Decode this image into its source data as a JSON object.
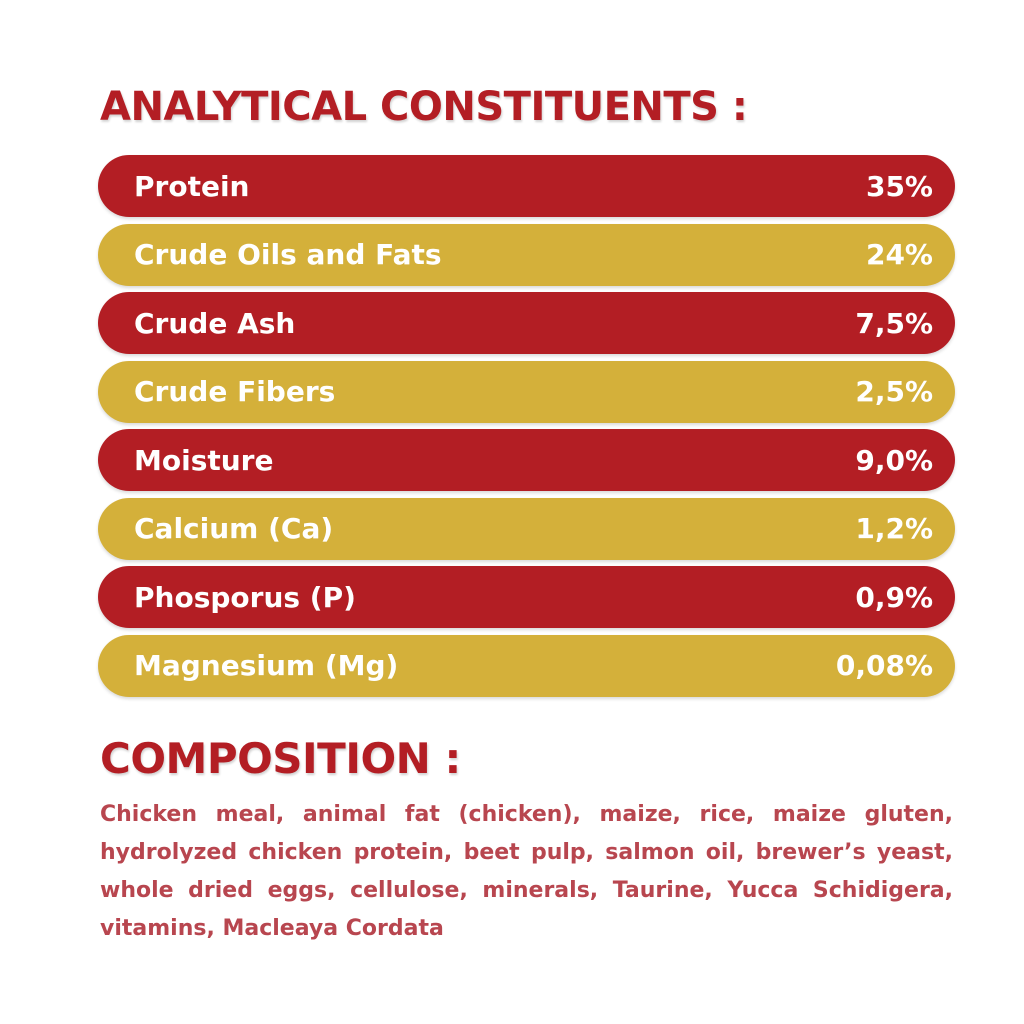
{
  "analytical": {
    "title": "ANALYTICAL CONSTITUENTS :",
    "rows": [
      {
        "label": "Protein",
        "value": "35%"
      },
      {
        "label": "Crude Oils and Fats",
        "value": "24%"
      },
      {
        "label": "Crude Ash",
        "value": "7,5%"
      },
      {
        "label": "Crude Fibers",
        "value": "2,5%"
      },
      {
        "label": "Moisture",
        "value": "9,0%"
      },
      {
        "label": "Calcium (Ca)",
        "value": "1,2%"
      },
      {
        "label": "Phosporus (P)",
        "value": "0,9%"
      },
      {
        "label": "Magnesium (Mg)",
        "value": "0,08%"
      }
    ]
  },
  "composition": {
    "title": "COMPOSITION :",
    "text": "Chicken meal, animal fat (chicken), maize, rice, maize gluten, hydrolyzed chicken protein, beet pulp, salmon oil, brewer’s yeast, whole dried eggs, cellulose, minerals, Taurine, Yucca Schidigera, vitamins, Macleaya Cordata"
  }
}
